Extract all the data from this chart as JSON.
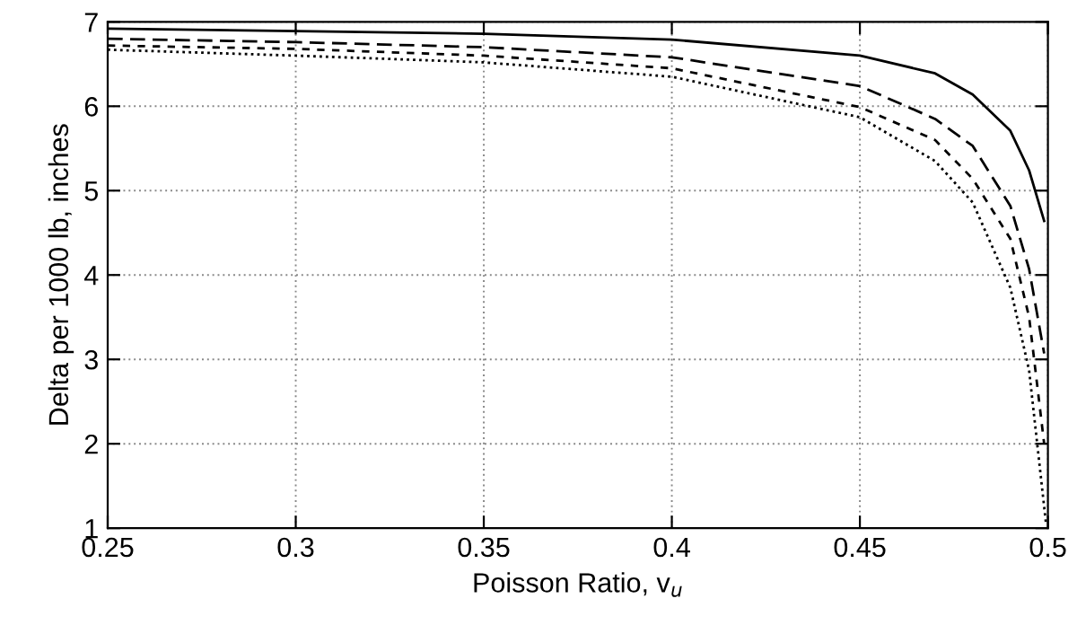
{
  "chart_data": {
    "type": "line",
    "xlabel": "Poisson Ratio, v$_{u}$",
    "ylabel": "Delta per 1000 lb, inches",
    "xlim": [
      0.25,
      0.5
    ],
    "xticks": [
      0.25,
      0.3,
      0.35,
      0.4,
      0.45,
      0.5
    ],
    "ylim": [
      1,
      7
    ],
    "yticks": [
      1,
      2,
      3,
      4,
      5,
      6,
      7
    ],
    "grid": true,
    "legend": false,
    "series": [
      {
        "color": "#000000",
        "line_style": "solid",
        "x": [
          0.25,
          0.3,
          0.35,
          0.4,
          0.45,
          0.47,
          0.48,
          0.49,
          0.495,
          0.499
        ],
        "values": [
          6.92,
          6.89,
          6.86,
          6.79,
          6.6,
          6.39,
          6.14,
          5.71,
          5.24,
          4.64
        ]
      },
      {
        "color": "#000000",
        "line_style": "dashed",
        "x": [
          0.25,
          0.3,
          0.35,
          0.4,
          0.45,
          0.47,
          0.48,
          0.49,
          0.495,
          0.499
        ],
        "values": [
          6.8,
          6.76,
          6.7,
          6.58,
          6.24,
          5.85,
          5.53,
          4.82,
          4.07,
          3.07
        ]
      },
      {
        "color": "#000000",
        "line_style": "shortdash",
        "x": [
          0.25,
          0.3,
          0.35,
          0.4,
          0.45,
          0.47,
          0.48,
          0.49,
          0.495,
          0.499
        ],
        "values": [
          6.72,
          6.68,
          6.6,
          6.45,
          5.99,
          5.6,
          5.14,
          4.43,
          3.5,
          2.0
        ]
      },
      {
        "color": "#000000",
        "line_style": "dotted",
        "x": [
          0.25,
          0.3,
          0.35,
          0.4,
          0.45,
          0.47,
          0.48,
          0.49,
          0.495,
          0.4995
        ],
        "values": [
          6.67,
          6.6,
          6.52,
          6.35,
          5.87,
          5.35,
          4.86,
          3.85,
          2.87,
          1.05
        ]
      }
    ]
  }
}
